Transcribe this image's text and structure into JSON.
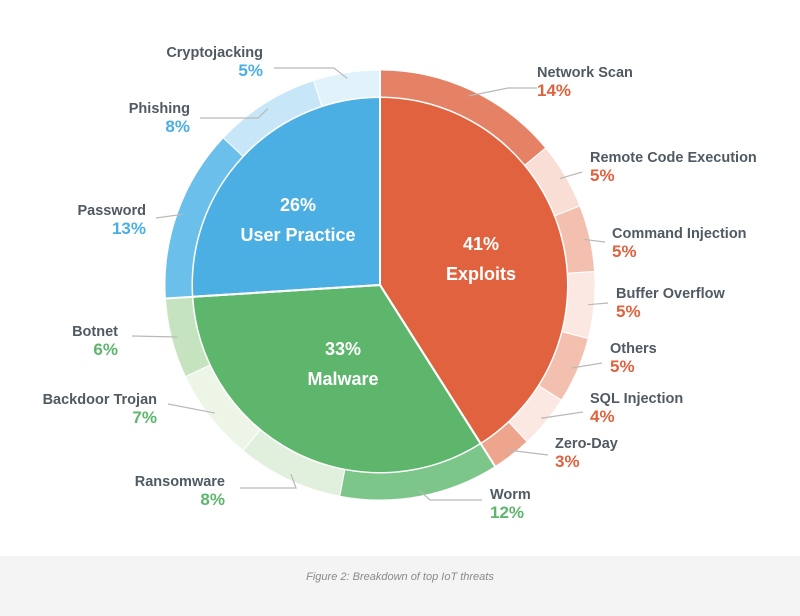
{
  "caption": "Figure 2: Breakdown of top IoT threats",
  "chart_data": {
    "type": "pie",
    "title": "",
    "groups": [
      {
        "name": "Exploits",
        "percent_label": "41%",
        "value": 41,
        "color": "#e0623f",
        "slices": [
          {
            "name": "Network Scan",
            "label": "14%",
            "value": 14,
            "color": "#e58266"
          },
          {
            "name": "Remote Code Execution",
            "label": "5%",
            "value": 5,
            "color": "#f8ded5"
          },
          {
            "name": "Command Injection",
            "label": "5%",
            "value": 5,
            "color": "#f3c0b0"
          },
          {
            "name": "Buffer Overflow",
            "label": "5%",
            "value": 5,
            "color": "#fbe8e2"
          },
          {
            "name": "Others",
            "label": "5%",
            "value": 5,
            "color": "#f3c0b0"
          },
          {
            "name": "SQL Injection",
            "label": "4%",
            "value": 4,
            "color": "#fbe8e2"
          },
          {
            "name": "Zero-Day",
            "label": "3%",
            "value": 3,
            "color": "#eea58e"
          }
        ]
      },
      {
        "name": "Malware",
        "percent_label": "33%",
        "value": 33,
        "color": "#5db66c",
        "slices": [
          {
            "name": "Worm",
            "label": "12%",
            "value": 12,
            "color": "#7dc68a"
          },
          {
            "name": "Ransomware",
            "label": "8%",
            "value": 8,
            "color": "#e1f0dc"
          },
          {
            "name": "Backdoor Trojan",
            "label": "7%",
            "value": 7,
            "color": "#edf5e7"
          },
          {
            "name": "Botnet",
            "label": "6%",
            "value": 6,
            "color": "#c6e3c0"
          }
        ]
      },
      {
        "name": "User Practice",
        "percent_label": "26%",
        "value": 26,
        "color": "#4bafe4",
        "slices": [
          {
            "name": "Password",
            "label": "13%",
            "value": 13,
            "color": "#6bbfeb"
          },
          {
            "name": "Phishing",
            "label": "8%",
            "value": 8,
            "color": "#c7e6f7"
          },
          {
            "name": "Cryptojacking",
            "label": "5%",
            "value": 5,
            "color": "#e2f2fb"
          }
        ]
      }
    ]
  }
}
